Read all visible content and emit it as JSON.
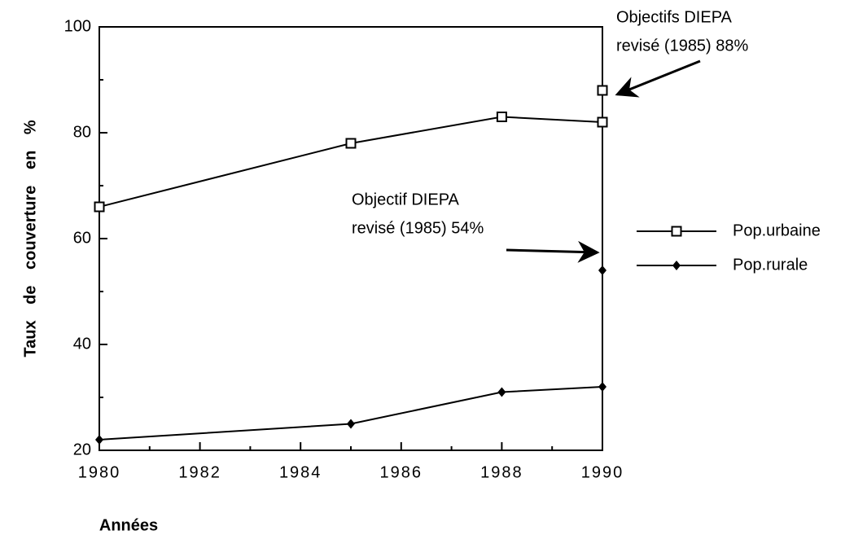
{
  "chart_data": {
    "type": "line",
    "x_label": "Années",
    "y_label": "Taux de couverture en %",
    "x": [
      1980,
      1985,
      1988,
      1990
    ],
    "series": [
      {
        "name": "Pop.urbaine",
        "color": "#000000",
        "marker": "square-open",
        "values": [
          66,
          78,
          83,
          82
        ]
      },
      {
        "name": "Pop.rurale",
        "color": "#000000",
        "marker": "diamond",
        "values": [
          22,
          25,
          31,
          32
        ]
      }
    ],
    "annotations": [
      {
        "lines": [
          "Objectifs DIEPA",
          "revisé (1985) 88%"
        ],
        "x": 1990,
        "y": 88,
        "series": 0
      },
      {
        "lines": [
          "Objectif DIEPA",
          "revisé (1985) 54%"
        ],
        "x": 1990,
        "y": 54,
        "series": 1
      }
    ],
    "xlim": [
      1980,
      1990
    ],
    "xticks": [
      1980,
      1982,
      1984,
      1986,
      1988,
      1990
    ],
    "xticks_minor": [
      1981,
      1983,
      1985,
      1987,
      1989
    ],
    "ylim": [
      20,
      100
    ],
    "yticks": [
      20,
      40,
      60,
      80,
      100
    ],
    "yticks_minor": [
      30,
      50,
      70,
      90
    ],
    "legend": "right",
    "grid": false
  }
}
